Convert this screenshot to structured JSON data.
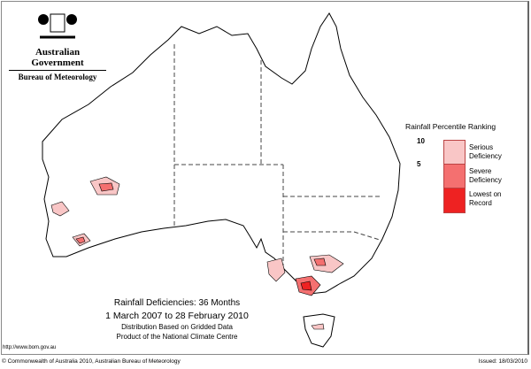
{
  "header": {
    "government": "Australian Government",
    "agency": "Bureau of Meteorology"
  },
  "legend": {
    "title": "Rainfall Percentile Ranking",
    "ticks": [
      "10",
      "5"
    ],
    "classes": [
      {
        "label": "Serious Deficiency",
        "color": "#f9c6c6"
      },
      {
        "label": "Severe Deficiency",
        "color": "#f47070"
      },
      {
        "label": "Lowest on Record",
        "color": "#ee2222"
      }
    ]
  },
  "titles": {
    "title": "Rainfall Deficiencies: 36 Months",
    "period": "1 March 2007 to 28 February 2010",
    "line3": "Distribution Based on Gridded Data",
    "line4": "Product of the National Climate Centre"
  },
  "footer": {
    "url": "http://www.bom.gov.au",
    "copyright": "© Commonwealth of Australia 2010, Australian Bureau of Meteorology",
    "issued": "Issued: 18/03/2010"
  }
}
